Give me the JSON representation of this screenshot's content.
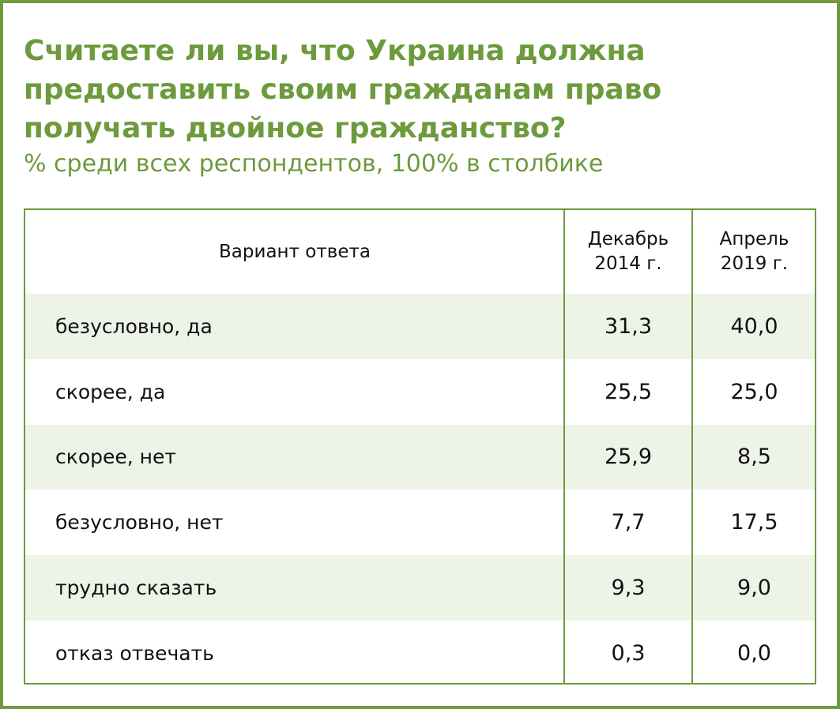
{
  "header": {
    "title": "Считаете ли вы, что Украина должна предоставить своим гражданам право получать двойное гражданство?",
    "subtitle": "% среди всех респондентов, 100% в столбике"
  },
  "table": {
    "columns": [
      [
        "Вариант ответа"
      ],
      [
        "Декабрь",
        "2014 г."
      ],
      [
        "Апрель",
        "2019 г."
      ]
    ],
    "rows": [
      [
        "безусловно, да",
        "31,3",
        "40,0"
      ],
      [
        "скорее, да",
        "25,5",
        "25,0"
      ],
      [
        "скорее, нет",
        "25,9",
        "8,5"
      ],
      [
        "безусловно, нет",
        "7,7",
        "17,5"
      ],
      [
        "трудно сказать",
        "9,3",
        "9,0"
      ],
      [
        "отказ отвечать",
        "0,3",
        "0,0"
      ]
    ]
  }
}
